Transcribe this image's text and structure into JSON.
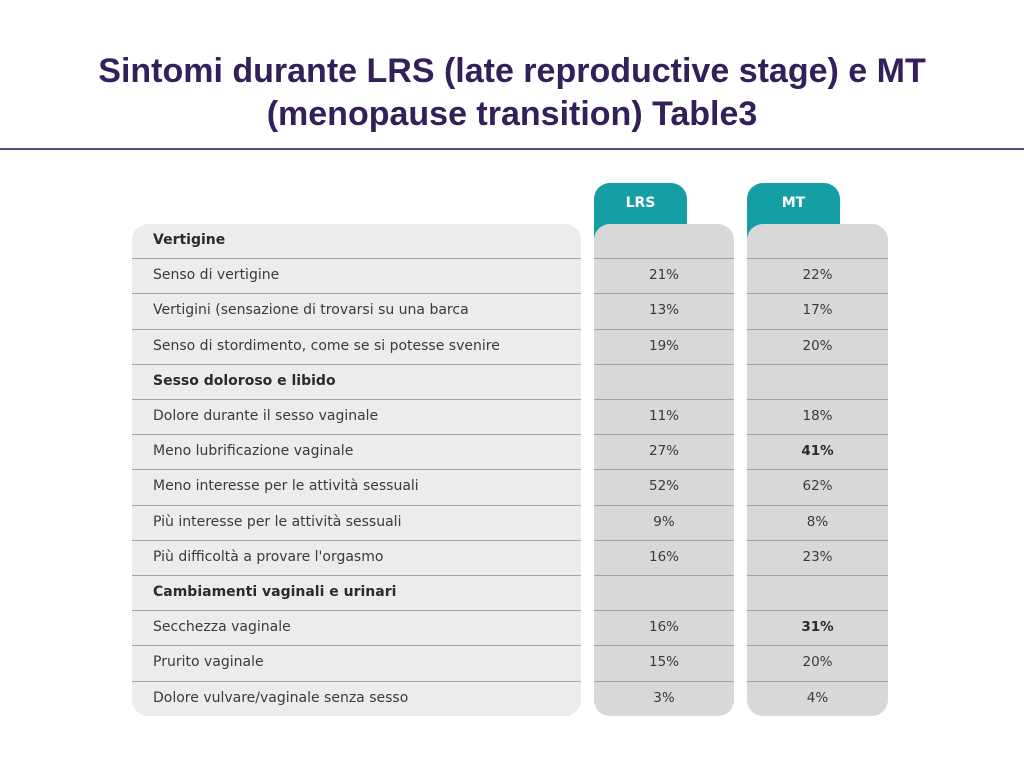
{
  "title": "Sintomi durante LRS (late reproductive stage) e MT (menopause transition) Table3",
  "columns": {
    "lrs": "LRS",
    "mt": "MT"
  },
  "colors": {
    "title": "#33205a",
    "tab": "#159ea3",
    "panel": "#d8d8d8",
    "label_panel": "#ececec"
  },
  "rows": [
    {
      "label": "Vertigine",
      "header": true,
      "lrs": "",
      "mt": ""
    },
    {
      "label": "Senso di vertigine",
      "lrs": "21%",
      "mt": "22%"
    },
    {
      "label": "Vertigini (sensazione di trovarsi su una barca",
      "lrs": "13%",
      "mt": "17%"
    },
    {
      "label": " Senso di stordimento, come se si potesse svenire",
      "lrs": "19%",
      "mt": "20%"
    },
    {
      "label": "Sesso doloroso e libido",
      "header": true,
      "lrs": "",
      "mt": ""
    },
    {
      "label": "Dolore durante il sesso vaginale",
      "lrs": "11%",
      "mt": "18%"
    },
    {
      "label": "Meno lubrificazione vaginale",
      "lrs": "27%",
      "mt": "41%",
      "mt_bold": true
    },
    {
      "label": "Meno interesse per le attività sessuali",
      "lrs": "52%",
      "mt": "62%"
    },
    {
      "label": " Più interesse per le attività sessuali",
      "lrs": "9%",
      "mt": "8%"
    },
    {
      "label": "Più difficoltà a provare l'orgasmo",
      "lrs": "16%",
      "mt": "23%"
    },
    {
      "label": "Cambiamenti vaginali e urinari",
      "header": true,
      "lrs": "",
      "mt": ""
    },
    {
      "label": "Secchezza vaginale",
      "lrs": "16%",
      "mt": "31%",
      "mt_bold": true
    },
    {
      "label": "Prurito vaginale",
      "lrs": "15%",
      "mt": "20%"
    },
    {
      "label": "Dolore vulvare/vaginale senza sesso",
      "lrs": "3%",
      "mt": "4%"
    }
  ]
}
